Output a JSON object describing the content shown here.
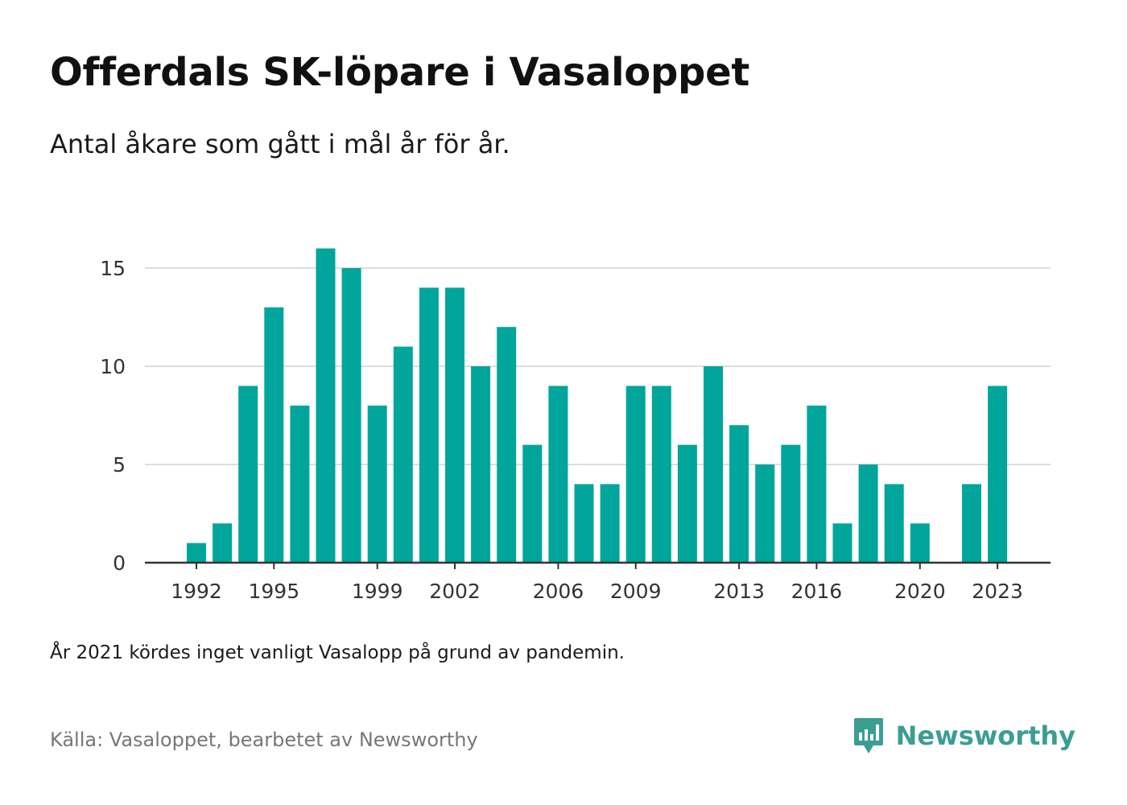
{
  "title": "Offerdals SK-löpare i Vasaloppet",
  "subtitle": "Antal åkare som gått i mål år för år.",
  "note": "År 2021 kördes inget vanligt Vasalopp på grund av pandemin.",
  "source": "Källa: Vasaloppet, bearbetet av Newsworthy",
  "brand": {
    "name": "Newsworthy",
    "icon": "newsworthy-logo-icon",
    "color": "#3a9e93"
  },
  "chart_data": {
    "type": "bar",
    "x": [
      1992,
      1993,
      1994,
      1995,
      1996,
      1997,
      1998,
      1999,
      2000,
      2001,
      2002,
      2003,
      2004,
      2005,
      2006,
      2007,
      2008,
      2009,
      2010,
      2011,
      2012,
      2013,
      2014,
      2015,
      2016,
      2017,
      2018,
      2019,
      2020,
      2021,
      2022,
      2023
    ],
    "values": [
      1,
      2,
      9,
      13,
      8,
      16,
      15,
      8,
      11,
      14,
      14,
      10,
      12,
      6,
      9,
      4,
      4,
      9,
      9,
      6,
      10,
      7,
      5,
      6,
      8,
      2,
      5,
      4,
      2,
      null,
      4,
      9
    ],
    "x_ticks": [
      1992,
      1995,
      1999,
      2002,
      2006,
      2009,
      2013,
      2016,
      2020,
      2023
    ],
    "y_ticks": [
      0,
      5,
      10,
      15
    ],
    "ylim": [
      0,
      16
    ],
    "bar_color": "#00a59b",
    "grid": true,
    "xlabel": "",
    "ylabel": ""
  }
}
